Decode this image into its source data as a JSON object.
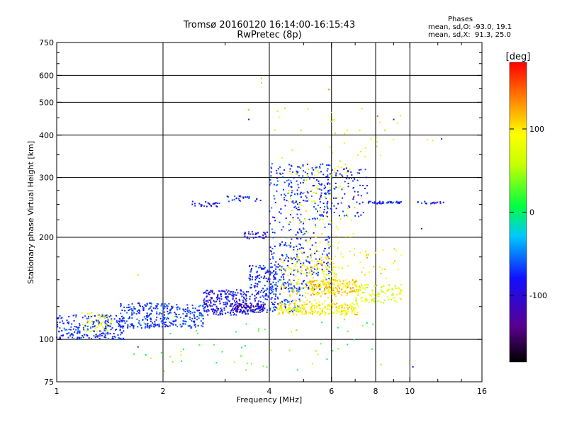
{
  "title": "Tromsø 20160120 16:14:00-16:15:43",
  "subtitle": "RwPretec (8p)",
  "stats": {
    "header": "Phases",
    "o_line": "mean, sd,O: -93.0, 19.1",
    "x_line": "mean, sd,X:  91.3, 25.0"
  },
  "chart_data": {
    "type": "scatter",
    "xlabel": "Frequency [MHz]",
    "ylabel": "Stationary phase Virtual Height [km]",
    "xscale": "log",
    "yscale": "log",
    "xlim": [
      1,
      16
    ],
    "ylim": [
      75,
      750
    ],
    "x_ticks": [
      1,
      2,
      4,
      6,
      8,
      10,
      16
    ],
    "x_tick_labels": [
      "1",
      "2",
      "4",
      "6",
      "8",
      "10",
      "16"
    ],
    "x_minor_ticks": [
      3,
      5,
      7,
      9,
      12,
      14
    ],
    "y_ticks": [
      75,
      100,
      200,
      300,
      400,
      500,
      600,
      750
    ],
    "y_tick_labels": [
      "75",
      "100",
      "200",
      "300",
      "400",
      "500",
      "600",
      "750"
    ],
    "y_minor_ticks": [
      125,
      150,
      175,
      225,
      250,
      275,
      350,
      450,
      550,
      650,
      700
    ],
    "grid": true,
    "colorbar": {
      "label": "[deg]",
      "min": -180,
      "max": 180,
      "ticks": [
        100,
        0,
        -100
      ],
      "tick_labels": [
        "100",
        "0",
        "-100"
      ]
    },
    "series": [
      {
        "clusters": [
          {
            "f": [
              1.0,
              1.55
            ],
            "h": [
              100,
              118
            ],
            "phase": -95,
            "n": 220
          },
          {
            "f": [
              1.15,
              1.45
            ],
            "h": [
              105,
              120
            ],
            "phase": 90,
            "n": 45
          },
          {
            "f": [
              1.5,
              2.6
            ],
            "h": [
              108,
              128
            ],
            "phase": -95,
            "n": 320
          },
          {
            "f": [
              2.6,
              3.5
            ],
            "h": [
              118,
              140
            ],
            "phase": -110,
            "n": 240
          },
          {
            "f": [
              3.2,
              3.9
            ],
            "h": [
              120,
              128
            ],
            "phase": -140,
            "n": 90
          },
          {
            "f": [
              3.5,
              4.2
            ],
            "h": [
              120,
              165
            ],
            "phase": -100,
            "n": 160
          },
          {
            "f": [
              4.0,
              6.0
            ],
            "h": [
              140,
              330
            ],
            "phase": -95,
            "n": 420
          },
          {
            "f": [
              4.0,
              5.0
            ],
            "h": [
              120,
              150
            ],
            "phase": -80,
            "n": 80
          },
          {
            "f": [
              4.2,
              7.2
            ],
            "h": [
              118,
              128
            ],
            "phase": 100,
            "n": 220
          },
          {
            "f": [
              4.3,
              6.2
            ],
            "h": [
              128,
              175
            ],
            "phase": 100,
            "n": 160
          },
          {
            "f": [
              5.2,
              7.2
            ],
            "h": [
              135,
              150
            ],
            "phase": 110,
            "n": 160
          },
          {
            "f": [
              7.0,
              9.5
            ],
            "h": [
              128,
              145
            ],
            "phase": 70,
            "n": 90
          },
          {
            "f": [
              4.5,
              7.0
            ],
            "h": [
              160,
              330
            ],
            "phase": 90,
            "n": 120
          },
          {
            "f": [
              5.5,
              7.6
            ],
            "h": [
              230,
              320
            ],
            "phase": -100,
            "n": 100
          },
          {
            "f": [
              7.2,
              9.5
            ],
            "h": [
              135,
              185
            ],
            "phase": 100,
            "n": 40
          },
          {
            "f": [
              2.4,
              2.9
            ],
            "h": [
              245,
              255
            ],
            "phase": -110,
            "n": 25
          },
          {
            "f": [
              3.0,
              3.8
            ],
            "h": [
              255,
              265
            ],
            "phase": -105,
            "n": 25
          },
          {
            "f": [
              7.6,
              9.5
            ],
            "h": [
              251,
              255
            ],
            "phase": -100,
            "n": 45
          },
          {
            "f": [
              10.5,
              12.5
            ],
            "h": [
              251,
              255
            ],
            "phase": -110,
            "n": 18
          },
          {
            "f": [
              3.4,
              4.0
            ],
            "h": [
              198,
              208
            ],
            "phase": -120,
            "n": 30
          },
          {
            "f": [
              4.0,
              9.5
            ],
            "h": [
              330,
              480
            ],
            "phase": 60,
            "n": 35
          },
          {
            "f": [
              1.4,
              8.5
            ],
            "h": [
              80,
              118
            ],
            "phase": 20,
            "n": 55
          }
        ],
        "outliers": [
          {
            "f": 3.8,
            "h": 588,
            "phase": 30
          },
          {
            "f": 3.8,
            "h": 570,
            "phase": 120
          },
          {
            "f": 5.9,
            "h": 545,
            "phase": 140
          },
          {
            "f": 3.5,
            "h": 475,
            "phase": 20
          },
          {
            "f": 3.5,
            "h": 445,
            "phase": -110
          },
          {
            "f": 8.1,
            "h": 455,
            "phase": 150
          },
          {
            "f": 9.0,
            "h": 445,
            "phase": -120
          },
          {
            "f": 11.2,
            "h": 388,
            "phase": 110
          },
          {
            "f": 11.6,
            "h": 386,
            "phase": 110
          },
          {
            "f": 12.3,
            "h": 390,
            "phase": -100
          },
          {
            "f": 10.8,
            "h": 212,
            "phase": -110
          },
          {
            "f": 10.2,
            "h": 83,
            "phase": -110
          },
          {
            "f": 1.7,
            "h": 95,
            "phase": -90
          },
          {
            "f": 1.7,
            "h": 155,
            "phase": 110
          },
          {
            "f": 1.85,
            "h": 88,
            "phase": 110
          },
          {
            "f": 2.25,
            "h": 90,
            "phase": 80
          },
          {
            "f": 2.25,
            "h": 92,
            "phase": 60
          }
        ]
      }
    ]
  }
}
